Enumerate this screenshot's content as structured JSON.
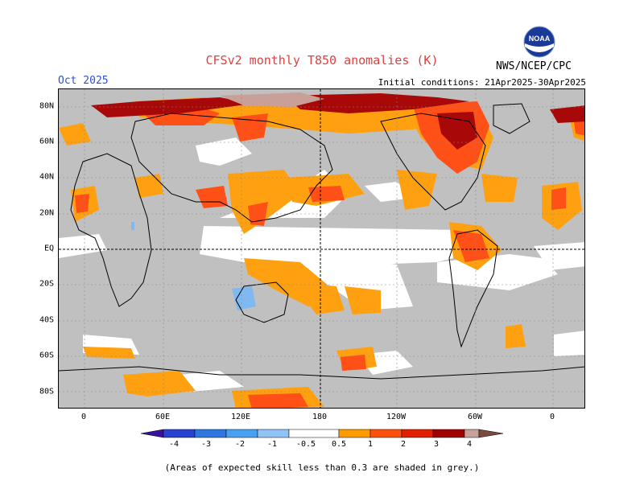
{
  "header": {
    "title": "CFSv2 monthly T850 anomalies (K)",
    "month": "Oct 2025",
    "initial_conditions": "Initial conditions: 21Apr2025-30Apr2025",
    "agency": "NWS/NCEP/CPC",
    "logo_text": "NOAA"
  },
  "axes": {
    "lat_labels": [
      "80N",
      "60N",
      "40N",
      "20N",
      "EQ",
      "20S",
      "40S",
      "60S",
      "80S"
    ],
    "lon_labels": [
      "0",
      "60E",
      "120E",
      "180",
      "120W",
      "60W",
      "0"
    ]
  },
  "colorbar": {
    "labels": [
      "-4",
      "-3",
      "-2",
      "-1",
      "-0.5",
      "0.5",
      "1",
      "2",
      "3",
      "4"
    ],
    "colors": [
      "#3a10a0",
      "#2a40d0",
      "#2c78e0",
      "#4aa0f0",
      "#90c4f4",
      "#ffffff",
      "#ff9a00",
      "#ff5010",
      "#e02000",
      "#a00000",
      "#c8a09a",
      "#7a4a40"
    ]
  },
  "colors": {
    "grey_low_skill": "#c0c0c0",
    "orange": "#ffa010",
    "red_orange": "#ff5018",
    "red": "#e02808",
    "dark_red": "#a80808",
    "pink_tan": "#c8a098",
    "light_blue": "#80b8f0"
  },
  "footnote": "(Areas of expected skill less than 0.3 are shaded in grey.)"
}
